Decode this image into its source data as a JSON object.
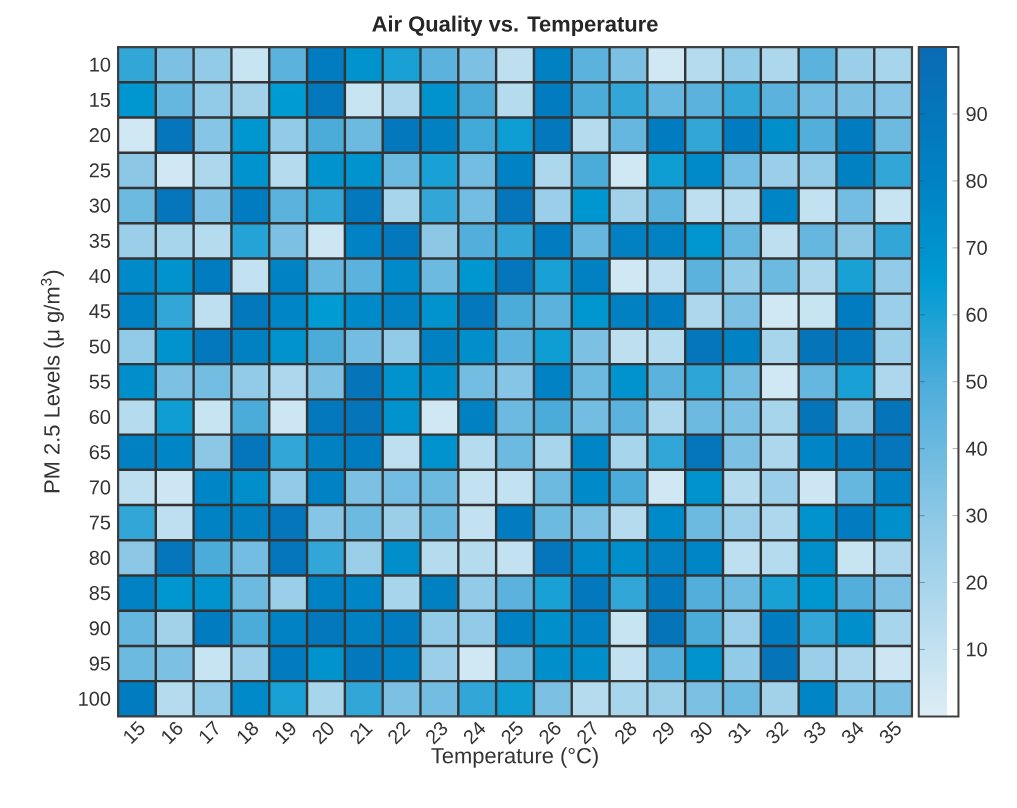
{
  "chart_data": {
    "type": "heatmap",
    "title": "Air Quality vs. Temperature",
    "xlabel": "Temperature (°C)",
    "ylabel": "PM  2.5  Levels  (μ g/m$^{3}$)",
    "categories": [
      "15",
      "16",
      "17",
      "18",
      "19",
      "20",
      "21",
      "22",
      "23",
      "24",
      "25",
      "26",
      "27",
      "28",
      "29",
      "30",
      "31",
      "32",
      "33",
      "34",
      "35"
    ],
    "y_categories": [
      "10",
      "15",
      "20",
      "25",
      "30",
      "35",
      "40",
      "45",
      "50",
      "55",
      "60",
      "65",
      "70",
      "75",
      "80",
      "85",
      "90",
      "95",
      "100"
    ],
    "cells": [
      [
        55,
        35,
        28,
        8,
        45,
        85,
        70,
        60,
        45,
        35,
        12,
        82,
        45,
        35,
        5,
        15,
        28,
        18,
        45,
        25,
        20
      ],
      [
        68,
        42,
        28,
        22,
        65,
        88,
        8,
        18,
        70,
        50,
        15,
        85,
        50,
        55,
        42,
        45,
        55,
        45,
        38,
        35,
        32
      ],
      [
        5,
        90,
        32,
        68,
        28,
        50,
        40,
        88,
        82,
        52,
        62,
        88,
        15,
        42,
        85,
        55,
        85,
        72,
        48,
        85,
        40
      ],
      [
        30,
        5,
        18,
        70,
        15,
        70,
        70,
        40,
        60,
        38,
        80,
        18,
        50,
        5,
        62,
        75,
        38,
        25,
        28,
        82,
        55
      ],
      [
        40,
        90,
        35,
        85,
        45,
        55,
        88,
        20,
        55,
        38,
        90,
        25,
        68,
        22,
        45,
        12,
        14,
        78,
        10,
        38,
        8
      ],
      [
        25,
        20,
        15,
        58,
        35,
        6,
        80,
        88,
        30,
        48,
        55,
        85,
        42,
        82,
        82,
        68,
        42,
        12,
        42,
        30,
        55
      ],
      [
        75,
        70,
        85,
        10,
        80,
        42,
        45,
        75,
        40,
        68,
        90,
        60,
        82,
        5,
        12,
        45,
        28,
        40,
        18,
        60,
        28
      ],
      [
        80,
        55,
        12,
        88,
        78,
        65,
        75,
        82,
        70,
        88,
        50,
        45,
        68,
        82,
        85,
        18,
        35,
        5,
        8,
        85,
        25
      ],
      [
        28,
        70,
        88,
        82,
        70,
        50,
        38,
        28,
        82,
        72,
        45,
        62,
        35,
        12,
        15,
        90,
        80,
        20,
        92,
        88,
        25
      ],
      [
        72,
        35,
        38,
        28,
        18,
        35,
        92,
        70,
        72,
        38,
        32,
        80,
        40,
        70,
        45,
        56,
        38,
        5,
        42,
        60,
        18
      ],
      [
        15,
        62,
        8,
        50,
        6,
        88,
        92,
        70,
        5,
        82,
        40,
        50,
        38,
        45,
        18,
        40,
        35,
        20,
        92,
        30,
        92
      ],
      [
        82,
        78,
        30,
        90,
        55,
        82,
        85,
        12,
        70,
        15,
        40,
        20,
        78,
        20,
        55,
        90,
        35,
        18,
        78,
        85,
        90
      ],
      [
        12,
        6,
        78,
        72,
        28,
        80,
        35,
        38,
        40,
        10,
        10,
        40,
        75,
        50,
        5,
        70,
        15,
        25,
        6,
        42,
        80
      ],
      [
        55,
        12,
        80,
        82,
        90,
        32,
        40,
        25,
        40,
        10,
        85,
        40,
        35,
        15,
        75,
        40,
        25,
        18,
        70,
        85,
        72
      ],
      [
        30,
        90,
        50,
        38,
        90,
        55,
        25,
        72,
        15,
        15,
        10,
        90,
        75,
        72,
        82,
        78,
        12,
        15,
        72,
        8,
        18
      ],
      [
        80,
        68,
        70,
        40,
        25,
        80,
        78,
        20,
        82,
        28,
        45,
        60,
        88,
        55,
        88,
        48,
        40,
        60,
        68,
        48,
        35
      ],
      [
        42,
        22,
        85,
        50,
        80,
        88,
        82,
        85,
        28,
        28,
        80,
        72,
        80,
        8,
        92,
        50,
        25,
        85,
        55,
        72,
        20
      ],
      [
        40,
        35,
        8,
        25,
        85,
        70,
        88,
        80,
        25,
        5,
        40,
        72,
        72,
        10,
        48,
        70,
        28,
        92,
        25,
        18,
        6
      ],
      [
        85,
        15,
        28,
        75,
        60,
        20,
        55,
        35,
        38,
        55,
        62,
        35,
        15,
        20,
        25,
        35,
        40,
        22,
        78,
        32,
        35
      ]
    ],
    "clim": [
      0,
      100
    ],
    "cticks": [
      10,
      20,
      30,
      40,
      50,
      60,
      70,
      80,
      90
    ]
  }
}
